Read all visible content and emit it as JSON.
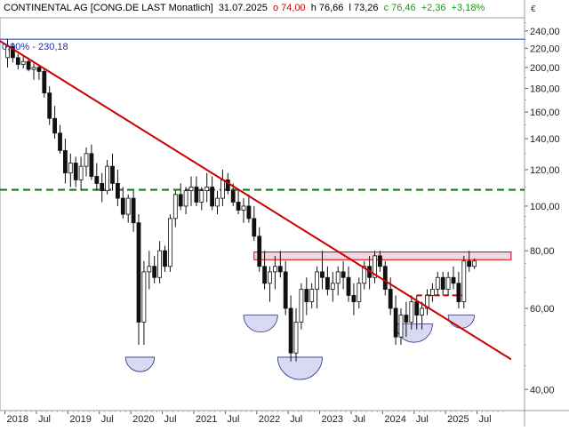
{
  "header": {
    "instrument": "CONTINENTAL AG [CONG.DE LAST Monatlich]",
    "date": "31.07.2025",
    "open": "o 74,00",
    "high": "h 76,66",
    "low": "l 73,26",
    "close": "c 76,46",
    "change": "+2,36",
    "change_pct": "+3,18%",
    "currency": "€"
  },
  "colors": {
    "up_candle": "#ffffff",
    "down_candle": "#111111",
    "resistance_line": "#cc0000",
    "support_dashed": "#1a7a1a",
    "top_line": "#1f2fb0",
    "zone_fill": "#f0d8e4",
    "bowl_fill": "#d8daf4",
    "bowl_stroke": "#2a2a7a",
    "open_red": "#cc0000",
    "close_green": "#1a9a1a"
  },
  "annotations": {
    "top_line_label": "0,00% - 230,18"
  },
  "chart_data": {
    "type": "candlestick",
    "scale": "log",
    "ylim": [
      36,
      254
    ],
    "y_ticks": [
      {
        "value": 240,
        "label": "240,00"
      },
      {
        "value": 220,
        "label": "220,00"
      },
      {
        "value": 200,
        "label": "200,00"
      },
      {
        "value": 180,
        "label": "180,00"
      },
      {
        "value": 160,
        "label": "160,00"
      },
      {
        "value": 140,
        "label": "140,00"
      },
      {
        "value": 120,
        "label": "120,00"
      },
      {
        "value": 100,
        "label": "100,00"
      },
      {
        "value": 80,
        "label": "80,00"
      },
      {
        "value": 60,
        "label": "60,00"
      },
      {
        "value": 40,
        "label": "40,00"
      }
    ],
    "x_ticks": [
      {
        "index": -0.5,
        "label": "2018"
      },
      {
        "index": 5.5,
        "label": "Jul"
      },
      {
        "index": 11.5,
        "label": "2019"
      },
      {
        "index": 17.5,
        "label": "Jul"
      },
      {
        "index": 23.5,
        "label": "2020"
      },
      {
        "index": 29.5,
        "label": "Jul"
      },
      {
        "index": 35.5,
        "label": "2021"
      },
      {
        "index": 41.5,
        "label": "Jul"
      },
      {
        "index": 47.5,
        "label": "2022"
      },
      {
        "index": 53.5,
        "label": "Jul"
      },
      {
        "index": 59.5,
        "label": "2023"
      },
      {
        "index": 65.5,
        "label": "Jul"
      },
      {
        "index": 71.5,
        "label": "2024"
      },
      {
        "index": 77.5,
        "label": "Jul"
      },
      {
        "index": 83.5,
        "label": "2025"
      },
      {
        "index": 89.5,
        "label": "Jul"
      }
    ],
    "first_month": "2018-01",
    "candles": [
      [
        210,
        230,
        200,
        222
      ],
      [
        222,
        226,
        205,
        210
      ],
      [
        210,
        214,
        198,
        203
      ],
      [
        203,
        212,
        199,
        206
      ],
      [
        206,
        210,
        196,
        198
      ],
      [
        198,
        204,
        188,
        200
      ],
      [
        200,
        202,
        188,
        196
      ],
      [
        196,
        198,
        172,
        176
      ],
      [
        176,
        182,
        150,
        155
      ],
      [
        155,
        165,
        140,
        144
      ],
      [
        144,
        150,
        130,
        132
      ],
      [
        132,
        140,
        112,
        118
      ],
      [
        118,
        130,
        110,
        124
      ],
      [
        124,
        128,
        110,
        114
      ],
      [
        114,
        128,
        108,
        122
      ],
      [
        122,
        134,
        116,
        130
      ],
      [
        130,
        136,
        114,
        116
      ],
      [
        116,
        124,
        108,
        112
      ],
      [
        112,
        118,
        102,
        108
      ],
      [
        108,
        126,
        106,
        122
      ],
      [
        122,
        130,
        108,
        112
      ],
      [
        112,
        120,
        100,
        104
      ],
      [
        104,
        110,
        94,
        96
      ],
      [
        96,
        106,
        92,
        104
      ],
      [
        104,
        108,
        88,
        92
      ],
      [
        92,
        96,
        50,
        56
      ],
      [
        56,
        76,
        50,
        72
      ],
      [
        72,
        80,
        66,
        74
      ],
      [
        74,
        78,
        68,
        70
      ],
      [
        70,
        84,
        68,
        80
      ],
      [
        80,
        82,
        72,
        74
      ],
      [
        74,
        96,
        72,
        94
      ],
      [
        94,
        108,
        90,
        106
      ],
      [
        106,
        112,
        98,
        100
      ],
      [
        100,
        110,
        96,
        108
      ],
      [
        108,
        116,
        100,
        110
      ],
      [
        110,
        116,
        100,
        102
      ],
      [
        102,
        110,
        98,
        108
      ],
      [
        108,
        118,
        102,
        110
      ],
      [
        110,
        116,
        98,
        100
      ],
      [
        100,
        108,
        96,
        104
      ],
      [
        104,
        120,
        100,
        114
      ],
      [
        114,
        118,
        106,
        108
      ],
      [
        108,
        112,
        100,
        102
      ],
      [
        102,
        108,
        96,
        98
      ],
      [
        98,
        104,
        92,
        100
      ],
      [
        100,
        106,
        92,
        94
      ],
      [
        94,
        100,
        84,
        86
      ],
      [
        86,
        90,
        72,
        74
      ],
      [
        74,
        80,
        66,
        68
      ],
      [
        68,
        74,
        62,
        72
      ],
      [
        72,
        78,
        66,
        74
      ],
      [
        74,
        80,
        70,
        72
      ],
      [
        72,
        76,
        58,
        60
      ],
      [
        60,
        64,
        46,
        48
      ],
      [
        48,
        60,
        46,
        56
      ],
      [
        56,
        68,
        54,
        66
      ],
      [
        66,
        70,
        58,
        62
      ],
      [
        62,
        68,
        60,
        66
      ],
      [
        66,
        74,
        60,
        72
      ],
      [
        72,
        80,
        66,
        70
      ],
      [
        70,
        74,
        64,
        66
      ],
      [
        66,
        72,
        62,
        68
      ],
      [
        68,
        74,
        64,
        72
      ],
      [
        72,
        76,
        66,
        70
      ],
      [
        70,
        74,
        62,
        64
      ],
      [
        64,
        68,
        58,
        62
      ],
      [
        62,
        70,
        60,
        68
      ],
      [
        68,
        76,
        66,
        74
      ],
      [
        74,
        78,
        66,
        70
      ],
      [
        70,
        80,
        68,
        78
      ],
      [
        78,
        80,
        72,
        74
      ],
      [
        74,
        76,
        64,
        66
      ],
      [
        66,
        70,
        58,
        60
      ],
      [
        60,
        64,
        50,
        52
      ],
      [
        52,
        60,
        50,
        58
      ],
      [
        58,
        62,
        52,
        56
      ],
      [
        56,
        64,
        54,
        62
      ],
      [
        62,
        64,
        54,
        58
      ],
      [
        58,
        62,
        54,
        60
      ],
      [
        60,
        66,
        58,
        64
      ],
      [
        64,
        68,
        62,
        66
      ],
      [
        66,
        72,
        64,
        70
      ],
      [
        70,
        72,
        64,
        66
      ],
      [
        66,
        72,
        64,
        70
      ],
      [
        70,
        74,
        66,
        68
      ],
      [
        68,
        72,
        60,
        62
      ],
      [
        62,
        78,
        60,
        76
      ],
      [
        76,
        80,
        72,
        74
      ],
      [
        74,
        77,
        73,
        76
      ]
    ],
    "lines": [
      {
        "kind": "trendline",
        "from": {
          "index": -2,
          "value": 230.18
        },
        "to": {
          "index": 96,
          "value": 46.5
        }
      },
      {
        "kind": "horizontal",
        "value": 230.18
      },
      {
        "kind": "horizontal_dashed",
        "value": 108.5
      },
      {
        "kind": "zone",
        "from_index": 47,
        "to_index": 96,
        "low": 76.5,
        "high": 79.5
      },
      {
        "kind": "short_dashed",
        "from_index": 78,
        "to_index": 87,
        "value": 64
      }
    ],
    "bowls": [
      {
        "from_index": 22.5,
        "to_index": 28,
        "top_value": 47
      },
      {
        "from_index": 45,
        "to_index": 51.5,
        "top_value": 58
      },
      {
        "from_index": 51.5,
        "to_index": 60,
        "top_value": 47
      },
      {
        "from_index": 74,
        "to_index": 81,
        "top_value": 55.5
      },
      {
        "from_index": 84,
        "to_index": 89,
        "top_value": 58
      }
    ]
  }
}
